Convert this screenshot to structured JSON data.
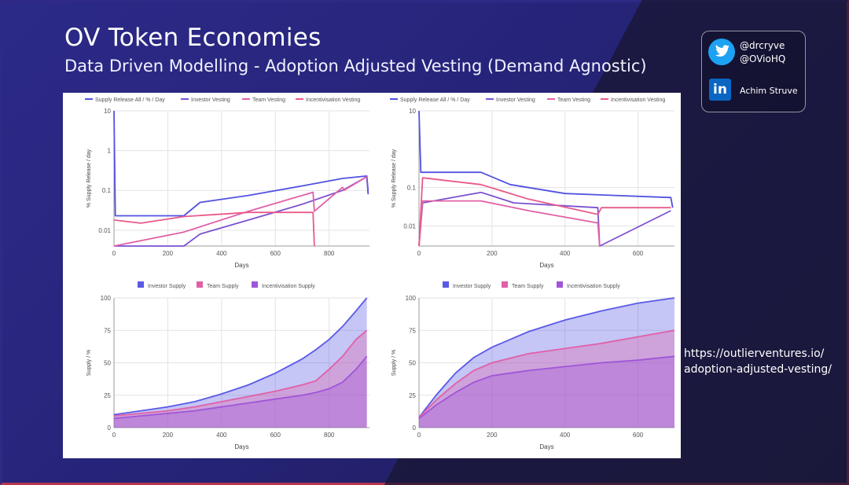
{
  "slide": {
    "title": "OV Token Economies",
    "subtitle": "Data Driven Modelling - Adoption Adjusted Vesting (Demand Agnostic)",
    "link_line1": "https://outlierventures.io/",
    "link_line2": "adoption-adjusted-vesting/"
  },
  "social": {
    "twitter_handle_1": "@drcryve",
    "twitter_handle_2": "@OVioHQ",
    "linkedin_name": "Achim Struve",
    "linkedin_logo": "in"
  },
  "colors": {
    "investor": "#5a5ae6",
    "team": "#e060a8",
    "incentivisation": "#a055d8",
    "supply_release": "#5252e0"
  },
  "chart_data": [
    {
      "type": "line",
      "xlabel": "Days",
      "ylabel": "% Supply Release / day",
      "y_scale": "log",
      "ylim": [
        0.004,
        10
      ],
      "xlim": [
        0,
        950
      ],
      "x_ticks": [
        "0",
        "200",
        "400",
        "600",
        "800"
      ],
      "y_ticks": [
        "10",
        "1",
        "0.1",
        "0.01"
      ],
      "legend": [
        "Supply Release All / % / Day",
        "Investor Vesting",
        "Team Vesting",
        "Incentivisation Vesting"
      ],
      "series": [
        {
          "name": "Supply Release All / % / Day",
          "x": [
            0,
            5,
            10,
            260,
            320,
            500,
            700,
            850,
            940,
            945
          ],
          "y": [
            10,
            0.023,
            0.023,
            0.023,
            0.05,
            0.075,
            0.13,
            0.2,
            0.23,
            0.08
          ]
        },
        {
          "name": "Investor Vesting",
          "x": [
            0,
            260,
            320,
            500,
            700,
            850,
            940,
            945
          ],
          "y": [
            0.004,
            0.004,
            0.008,
            0.018,
            0.045,
            0.1,
            0.22,
            0.1
          ]
        },
        {
          "name": "Team Vesting",
          "x": [
            0,
            260,
            500,
            740,
            745,
            850,
            855,
            940
          ],
          "y": [
            0.004,
            0.009,
            0.03,
            0.09,
            0.03,
            0.12,
            0.1,
            0.22
          ]
        },
        {
          "name": "Incentivisation Vesting",
          "x": [
            0,
            100,
            260,
            500,
            740,
            745
          ],
          "y": [
            0.018,
            0.015,
            0.022,
            0.028,
            0.028,
            0.004
          ]
        }
      ]
    },
    {
      "type": "line",
      "xlabel": "Days",
      "ylabel": "% Supply Release / day",
      "y_scale": "log",
      "ylim": [
        0.003,
        10
      ],
      "xlim": [
        0,
        700
      ],
      "x_ticks": [
        "0",
        "200",
        "400",
        "600"
      ],
      "y_ticks": [
        "10",
        "0.1",
        "0.01"
      ],
      "legend": [
        "Supply Release All / % / Day",
        "Investor Vesting",
        "Team Vesting",
        "Incentivisation Vesting"
      ],
      "series": [
        {
          "name": "Supply Release All / % / Day",
          "x": [
            0,
            5,
            10,
            170,
            250,
            400,
            690,
            695
          ],
          "y": [
            10,
            0.25,
            0.25,
            0.25,
            0.12,
            0.07,
            0.055,
            0.03
          ]
        },
        {
          "name": "Investor Vesting",
          "x": [
            0,
            10,
            170,
            260,
            490,
            495,
            690
          ],
          "y": [
            0.003,
            0.04,
            0.075,
            0.04,
            0.03,
            0.003,
            0.025
          ]
        },
        {
          "name": "Team Vesting",
          "x": [
            0,
            10,
            170,
            300,
            490,
            495
          ],
          "y": [
            0.003,
            0.045,
            0.045,
            0.025,
            0.012,
            0.003
          ]
        },
        {
          "name": "Incentivisation Vesting",
          "x": [
            0,
            10,
            170,
            300,
            490,
            500,
            690
          ],
          "y": [
            0.003,
            0.18,
            0.12,
            0.05,
            0.02,
            0.03,
            0.03
          ]
        }
      ]
    },
    {
      "type": "area",
      "xlabel": "Days",
      "ylabel": "Supply / %",
      "ylim": [
        0,
        100
      ],
      "xlim": [
        0,
        950
      ],
      "x_ticks": [
        "0",
        "200",
        "400",
        "600",
        "800"
      ],
      "y_ticks": [
        "100",
        "75",
        "50",
        "25",
        "0"
      ],
      "legend": [
        "Investor Supply",
        "Team Supply",
        "Incentivisation Supply"
      ],
      "x": [
        0,
        100,
        200,
        300,
        400,
        500,
        600,
        700,
        750,
        800,
        850,
        900,
        940
      ],
      "series": [
        {
          "name": "Investor Supply",
          "values": [
            10,
            13,
            16,
            20,
            26,
            33,
            42,
            53,
            60,
            68,
            78,
            90,
            100
          ]
        },
        {
          "name": "Team Supply",
          "values": [
            9,
            11,
            13,
            16,
            20,
            24,
            28,
            33,
            36,
            45,
            55,
            68,
            75
          ]
        },
        {
          "name": "Incentivisation Supply",
          "values": [
            7,
            9,
            11,
            13,
            16,
            19,
            22,
            25,
            27,
            30,
            35,
            45,
            55
          ]
        }
      ]
    },
    {
      "type": "area",
      "xlabel": "Days",
      "ylabel": "Supply / %",
      "ylim": [
        0,
        100
      ],
      "xlim": [
        0,
        700
      ],
      "x_ticks": [
        "0",
        "200",
        "400",
        "600"
      ],
      "y_ticks": [
        "100",
        "75",
        "50",
        "25",
        "0"
      ],
      "legend": [
        "Investor Supply",
        "Team Supply",
        "Incentivisation Supply"
      ],
      "x": [
        0,
        50,
        100,
        150,
        200,
        300,
        400,
        500,
        600,
        700
      ],
      "series": [
        {
          "name": "Investor Supply",
          "values": [
            8,
            26,
            42,
            54,
            62,
            74,
            83,
            90,
            96,
            100
          ]
        },
        {
          "name": "Team Supply",
          "values": [
            8,
            22,
            34,
            44,
            50,
            57,
            61,
            65,
            70,
            75
          ]
        },
        {
          "name": "Incentivisation Supply",
          "values": [
            7,
            18,
            27,
            35,
            40,
            44,
            47,
            50,
            52,
            55
          ]
        }
      ]
    }
  ]
}
